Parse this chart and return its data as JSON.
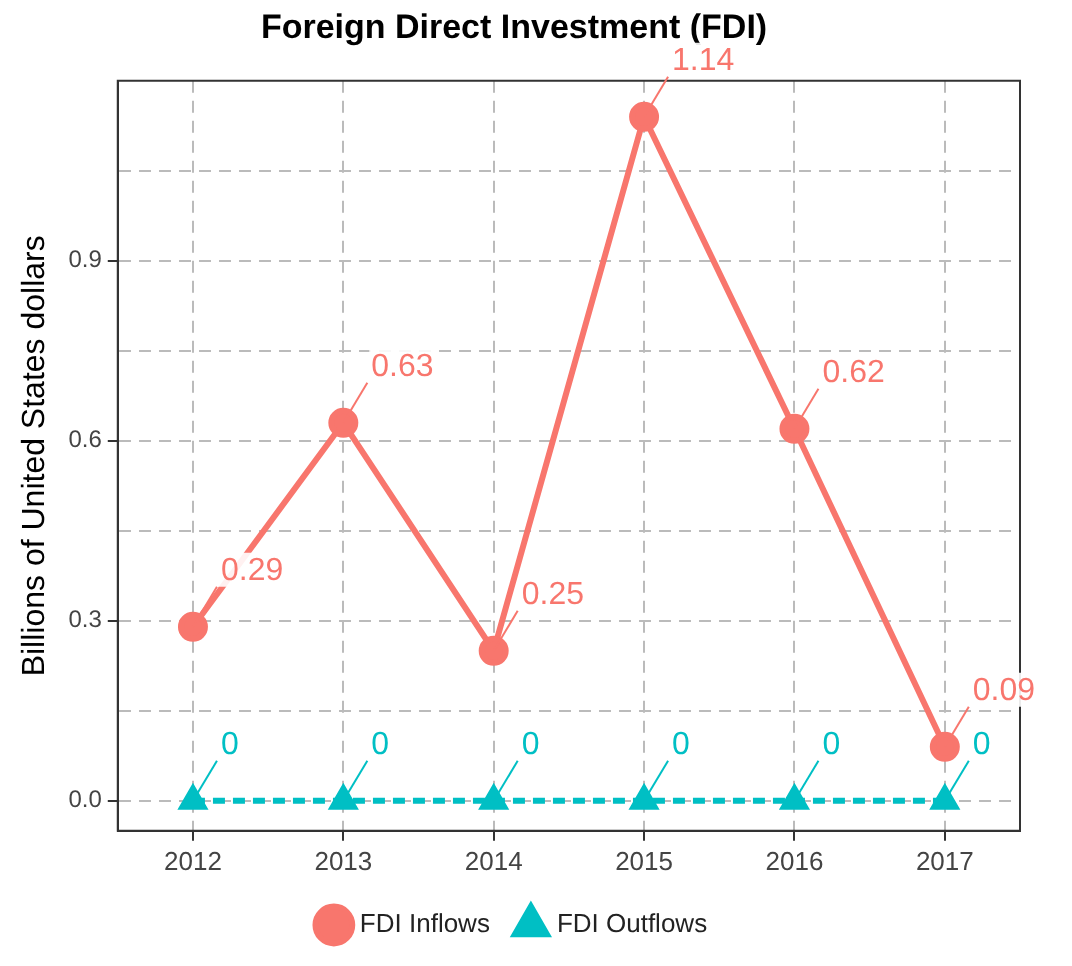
{
  "chart_data": {
    "type": "line",
    "title": "Foreign Direct Investment (FDI)",
    "ylabel": "Billions of United States dollars",
    "categories": [
      "2012",
      "2013",
      "2014",
      "2015",
      "2016",
      "2017"
    ],
    "series": [
      {
        "name": "FDI Inflows",
        "color": "#f8766d",
        "values": [
          0.29,
          0.63,
          0.25,
          1.14,
          0.62,
          0.09
        ],
        "marker": "circle",
        "line_style": "solid"
      },
      {
        "name": "FDI Outflows",
        "color": "#00bfc4",
        "values": [
          0,
          0,
          0,
          0,
          0,
          0
        ],
        "marker": "triangle",
        "line_style": "dashed"
      }
    ],
    "ylim": [
      -0.05,
      1.2
    ],
    "yticks": [
      {
        "value": 0,
        "label": "0.0"
      },
      {
        "value": 0.15,
        "label": null
      },
      0.3,
      {
        "value": 0.45,
        "label": null
      },
      0.6,
      {
        "value": 0.75,
        "label": null
      },
      0.9,
      {
        "value": 1.05,
        "label": null
      }
    ],
    "grid": true,
    "legend": "bottom",
    "data_labels": true
  }
}
